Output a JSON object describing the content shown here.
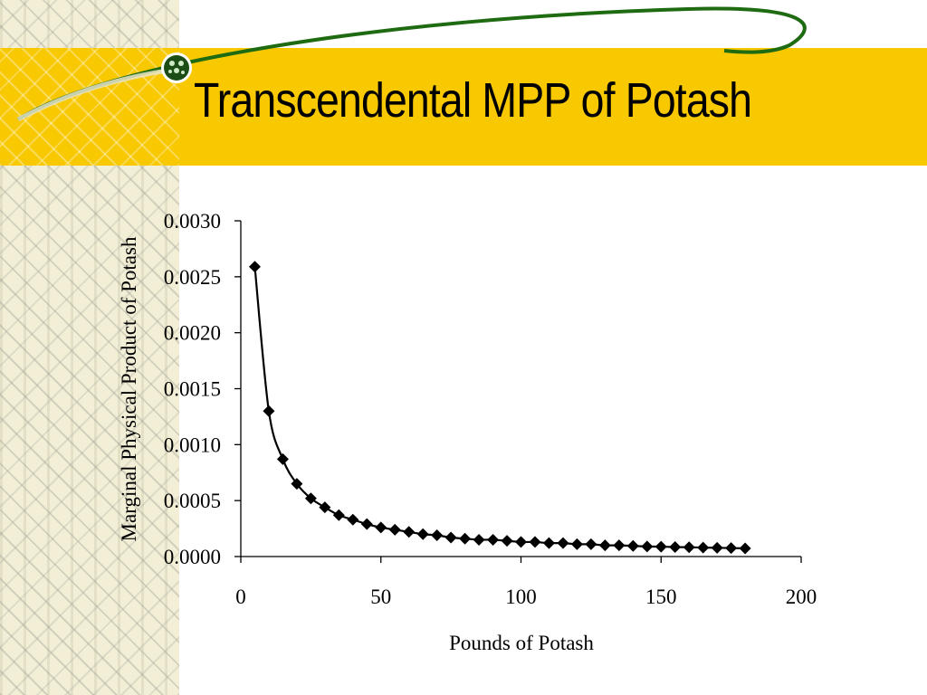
{
  "slide": {
    "title": "Transcendental MPP of Potash"
  },
  "colors": {
    "title_band": "#f8c800",
    "swoosh": "#1f6b12",
    "series": "#000000"
  },
  "chart_data": {
    "type": "line",
    "markers": "diamond",
    "title": "",
    "xlabel": "Pounds of Potash",
    "ylabel": "Marginal Physical Product of Potash",
    "xlim": [
      0,
      200
    ],
    "ylim": [
      0,
      0.003
    ],
    "xticks": [
      "0",
      "50",
      "100",
      "150",
      "200"
    ],
    "yticks": [
      "0.0000",
      "0.0005",
      "0.0010",
      "0.0015",
      "0.0020",
      "0.0025",
      "0.0030"
    ],
    "grid": false,
    "legend": "none",
    "series": [
      {
        "x": [
          5,
          10,
          15,
          20,
          25,
          30,
          35,
          40,
          45,
          50,
          55,
          60,
          65,
          70,
          75,
          80,
          85,
          90,
          95,
          100,
          105,
          110,
          115,
          120,
          125,
          130,
          135,
          140,
          145,
          150,
          155,
          160,
          165,
          170,
          175,
          180
        ],
        "y": [
          0.00259,
          0.0013,
          0.00087,
          0.00065,
          0.00052,
          0.00044,
          0.00037,
          0.00033,
          0.00029,
          0.00026,
          0.00024,
          0.00022,
          0.0002,
          0.00019,
          0.00017,
          0.00016,
          0.00015,
          0.00015,
          0.00014,
          0.00013,
          0.00013,
          0.00012,
          0.00012,
          0.00011,
          0.00011,
          0.0001,
          0.0001,
          9.5e-05,
          9e-05,
          8.8e-05,
          8.5e-05,
          8.3e-05,
          8e-05,
          7.8e-05,
          7.6e-05,
          7.3e-05
        ]
      }
    ]
  }
}
